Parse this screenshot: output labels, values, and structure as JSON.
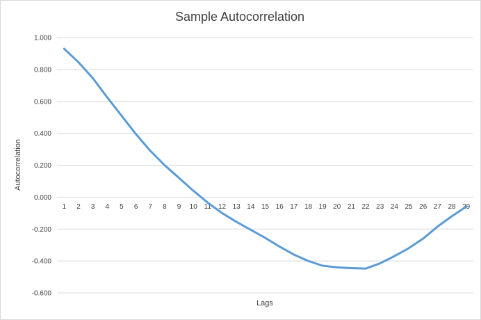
{
  "chart_data": {
    "type": "line",
    "title": "Sample Autocorrelation",
    "xlabel": "Lags",
    "ylabel": "Autocorrelation",
    "ylim": [
      -0.6,
      1.0
    ],
    "yticks": [
      1.0,
      0.8,
      0.6,
      0.4,
      0.2,
      0.0,
      -0.2,
      -0.4,
      -0.6
    ],
    "ytick_labels": [
      "1.000",
      "0.800",
      "0.600",
      "0.400",
      "0.200",
      "0.000",
      "-0.200",
      "-0.400",
      "-0.600"
    ],
    "categories": [
      "1",
      "2",
      "3",
      "4",
      "5",
      "6",
      "7",
      "8",
      "9",
      "10",
      "11",
      "12",
      "13",
      "14",
      "15",
      "16",
      "17",
      "18",
      "19",
      "20",
      "21",
      "22",
      "23",
      "24",
      "25",
      "26",
      "27",
      "28",
      "29"
    ],
    "series": [
      {
        "color": "#5b9bd5",
        "values": [
          0.93,
          0.845,
          0.745,
          0.625,
          0.51,
          0.395,
          0.29,
          0.2,
          0.12,
          0.04,
          -0.035,
          -0.1,
          -0.155,
          -0.205,
          -0.255,
          -0.31,
          -0.36,
          -0.4,
          -0.43,
          -0.44,
          -0.445,
          -0.448,
          -0.415,
          -0.37,
          -0.32,
          -0.26,
          -0.185,
          -0.12,
          -0.06
        ]
      }
    ],
    "gridlines": "horizontal",
    "legend": "none"
  }
}
